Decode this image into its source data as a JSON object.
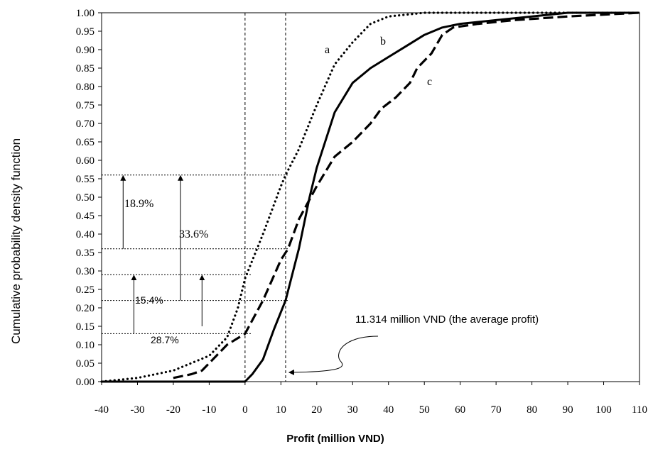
{
  "chart_data": {
    "type": "line",
    "xlabel": "Profit (million VND)",
    "ylabel": "Cumulative probability density function",
    "xlim": [
      -40,
      110
    ],
    "ylim": [
      0,
      1
    ],
    "x_ticks": [
      "-40",
      "-30",
      "-20",
      "-10",
      "0",
      "10",
      "20",
      "30",
      "40",
      "50",
      "60",
      "70",
      "80",
      "90",
      "100",
      "110"
    ],
    "y_ticks": [
      "0.00",
      "0.05",
      "0.10",
      "0.15",
      "0.20",
      "0.25",
      "0.30",
      "0.35",
      "0.40",
      "0.45",
      "0.50",
      "0.55",
      "0.60",
      "0.65",
      "0.70",
      "0.75",
      "0.80",
      "0.85",
      "0.90",
      "0.95",
      "1.00"
    ],
    "series": [
      {
        "name": "a",
        "style": "dotted",
        "points": [
          [
            -40,
            0.0
          ],
          [
            -30,
            0.01
          ],
          [
            -20,
            0.03
          ],
          [
            -10,
            0.07
          ],
          [
            -5,
            0.12
          ],
          [
            -2,
            0.2
          ],
          [
            0,
            0.28
          ],
          [
            5,
            0.4
          ],
          [
            10,
            0.53
          ],
          [
            11.3,
            0.56
          ],
          [
            15,
            0.63
          ],
          [
            20,
            0.75
          ],
          [
            25,
            0.86
          ],
          [
            30,
            0.92
          ],
          [
            35,
            0.97
          ],
          [
            40,
            0.99
          ],
          [
            50,
            1.0
          ],
          [
            110,
            1.0
          ]
        ]
      },
      {
        "name": "b",
        "style": "solid",
        "points": [
          [
            -40,
            0.0
          ],
          [
            0,
            0.0
          ],
          [
            2,
            0.02
          ],
          [
            5,
            0.06
          ],
          [
            8,
            0.14
          ],
          [
            11.3,
            0.22
          ],
          [
            15,
            0.36
          ],
          [
            18,
            0.5
          ],
          [
            20,
            0.58
          ],
          [
            25,
            0.73
          ],
          [
            30,
            0.81
          ],
          [
            35,
            0.85
          ],
          [
            40,
            0.88
          ],
          [
            45,
            0.91
          ],
          [
            50,
            0.94
          ],
          [
            55,
            0.96
          ],
          [
            60,
            0.97
          ],
          [
            70,
            0.98
          ],
          [
            80,
            0.99
          ],
          [
            90,
            1.0
          ],
          [
            110,
            1.0
          ]
        ]
      },
      {
        "name": "c",
        "style": "dashed",
        "points": [
          [
            -20,
            0.01
          ],
          [
            -15,
            0.02
          ],
          [
            -12,
            0.03
          ],
          [
            -8,
            0.07
          ],
          [
            -5,
            0.1
          ],
          [
            0,
            0.13
          ],
          [
            5,
            0.22
          ],
          [
            10,
            0.33
          ],
          [
            12,
            0.36
          ],
          [
            15,
            0.44
          ],
          [
            20,
            0.53
          ],
          [
            25,
            0.61
          ],
          [
            30,
            0.65
          ],
          [
            35,
            0.7
          ],
          [
            38,
            0.74
          ],
          [
            42,
            0.77
          ],
          [
            46,
            0.81
          ],
          [
            48,
            0.85
          ],
          [
            52,
            0.89
          ],
          [
            55,
            0.94
          ],
          [
            58,
            0.96
          ],
          [
            65,
            0.97
          ],
          [
            75,
            0.98
          ],
          [
            90,
            0.99
          ],
          [
            110,
            1.0
          ]
        ]
      }
    ],
    "vertical_lines": [
      0,
      11.314
    ],
    "annotations": {
      "a_label": "a",
      "b_label": "b",
      "c_label": "c",
      "pct_18_9": "18.9%",
      "pct_33_6": "33.6%",
      "pct_15_4": "15.4%",
      "pct_28_7": "28.7%",
      "avg_profit": "11.314 million VND (the average profit)"
    },
    "guide_levels": [
      0.56,
      0.36,
      0.29,
      0.22,
      0.13
    ],
    "grid": false
  }
}
